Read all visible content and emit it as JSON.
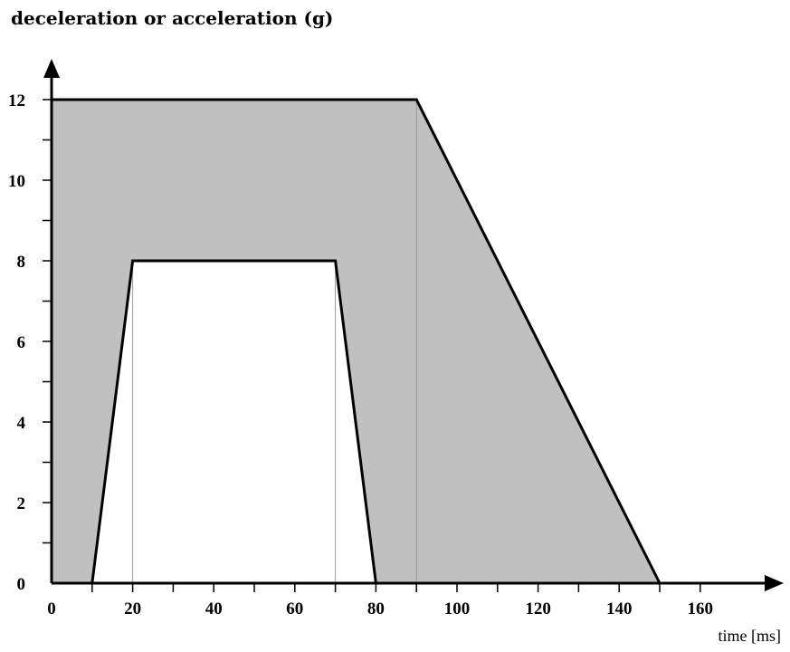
{
  "chart_data": {
    "type": "area",
    "title": "deceleration or acceleration (g)",
    "xlabel": "time [ms]",
    "ylabel": "",
    "xlim": [
      0,
      160
    ],
    "ylim": [
      0,
      12
    ],
    "x_ticks": [
      0,
      20,
      40,
      60,
      80,
      100,
      120,
      140,
      160
    ],
    "y_ticks": [
      0,
      2,
      4,
      6,
      8,
      10,
      12
    ],
    "grid": false,
    "fill_color": "#c0c0c0",
    "line_color": "#000000",
    "regions": [
      {
        "role": "upper-bound",
        "points": [
          [
            0,
            0
          ],
          [
            0,
            12
          ],
          [
            90,
            12
          ],
          [
            150,
            0
          ]
        ]
      },
      {
        "role": "lower-bound",
        "points": [
          [
            10,
            0
          ],
          [
            20,
            8
          ],
          [
            70,
            8
          ],
          [
            80,
            0
          ]
        ]
      }
    ],
    "reference_lines_x": [
      20,
      70,
      90
    ]
  }
}
